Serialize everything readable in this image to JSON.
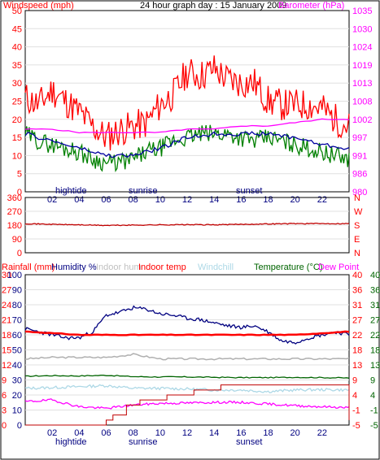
{
  "chart_data": [
    {
      "type": "line",
      "panel": "wind-baro",
      "title": "24 hour graph day : 15 January 2009",
      "left_label": "Windspeed (mph)",
      "right_label": "Barometer (hPa)",
      "colors": {
        "gust": "#ff0000",
        "average": "#008000",
        "direction_avg": "#0000a0",
        "barometer": "#ff00ff",
        "left_axis": "#ff0000",
        "right_axis": "#ff00ff"
      },
      "left_ticks": [
        "50",
        "45",
        "40",
        "35",
        "30",
        "25",
        "20",
        "15",
        "10",
        "5",
        "0"
      ],
      "right_ticks": [
        "1035",
        "1030",
        "1024",
        "1019",
        "1013",
        "1008",
        "1002",
        "997",
        "991",
        "986",
        "980"
      ],
      "ylim_left": [
        0,
        50
      ],
      "ylim_right": [
        980,
        1035
      ],
      "x_ticks": [
        "02",
        "04",
        "06",
        "08",
        "10",
        "12",
        "14",
        "16",
        "18",
        "20",
        "22",
        ""
      ],
      "events": [
        "hightide",
        "sunrise",
        "sunset"
      ],
      "series": [
        {
          "key": "gust",
          "hours": [
            0,
            1,
            2,
            3,
            4,
            5,
            6,
            7,
            8,
            9,
            10,
            11,
            12,
            13,
            14,
            15,
            16,
            17,
            18,
            19,
            20,
            21,
            22,
            23,
            24
          ],
          "values": [
            26,
            24,
            28,
            25,
            22,
            18,
            15,
            17,
            18,
            19,
            24,
            27,
            33,
            32,
            34,
            31,
            30,
            30,
            25,
            24,
            24,
            24,
            23,
            20,
            18
          ]
        },
        {
          "key": "average",
          "hours": [
            0,
            1,
            2,
            3,
            4,
            5,
            6,
            7,
            8,
            9,
            10,
            11,
            12,
            13,
            14,
            15,
            16,
            17,
            18,
            19,
            20,
            21,
            22,
            23,
            24
          ],
          "values": [
            16,
            14,
            13,
            12,
            11,
            9,
            8,
            8,
            9,
            11,
            12,
            14,
            15,
            16,
            16,
            16,
            15,
            14,
            15,
            14,
            13,
            12,
            11,
            10,
            9
          ]
        },
        {
          "key": "direction_avg",
          "hours": [
            0,
            2,
            4,
            6,
            8,
            10,
            12,
            14,
            16,
            18,
            20,
            22,
            24
          ],
          "values": [
            16,
            14,
            12,
            10,
            10,
            12,
            15,
            16,
            16,
            16,
            15,
            13,
            12
          ]
        },
        {
          "key": "barometer",
          "hours": [
            0,
            2,
            4,
            6,
            8,
            10,
            12,
            14,
            16,
            18,
            20,
            22,
            24
          ],
          "values": [
            999,
            999,
            998,
            998,
            998,
            998,
            999,
            999,
            1000,
            1000,
            1001,
            1002,
            1002
          ]
        }
      ]
    },
    {
      "type": "line",
      "panel": "wind-direction",
      "left_ticks": [
        "360",
        "270",
        "180",
        "90",
        "0"
      ],
      "right_ticks": [
        "N",
        "W",
        "S",
        "E",
        "N"
      ],
      "ylim": [
        0,
        360
      ],
      "colors": {
        "direction": "#c00000",
        "axis": "#ff0000"
      },
      "series": [
        {
          "key": "direction",
          "hours": [
            0,
            2,
            4,
            6,
            8,
            10,
            12,
            14,
            16,
            18,
            20,
            22,
            24
          ],
          "values": [
            190,
            185,
            182,
            178,
            180,
            182,
            183,
            182,
            185,
            188,
            190,
            190,
            190
          ]
        }
      ]
    },
    {
      "type": "line",
      "panel": "temp-humidity-rain",
      "legend": [
        {
          "label": "Rainfall (mm)",
          "color": "#ff0000"
        },
        {
          "label": "Humidity %",
          "color": "#000080"
        },
        {
          "label": "Indoor hum",
          "color": "#c0c0c0"
        },
        {
          "label": "Indoor temp",
          "color": "#ff0000"
        },
        {
          "label": "Windchill",
          "color": "#add8e6"
        },
        {
          "label": "Temperature (°C)",
          "color": "#006400"
        },
        {
          "label": "Dew Point",
          "color": "#ff00ff"
        }
      ],
      "rain_ticks": [
        "30",
        "27",
        "24",
        "21",
        "18",
        "15",
        "12",
        "9",
        "6",
        "3",
        "0"
      ],
      "humidity_ticks": [
        "100",
        "90",
        "80",
        "70",
        "60",
        "50",
        "40",
        "30",
        "20",
        "10",
        "0"
      ],
      "temp_ticks_a": [
        "40",
        "36",
        "31",
        "27",
        "22",
        "18",
        "13",
        "9",
        "4",
        "-1",
        "-5"
      ],
      "temp_ticks_b": [
        "40",
        "36",
        "31",
        "27",
        "22",
        "18",
        "13",
        "9",
        "4",
        "-1",
        "-5"
      ],
      "x_ticks": [
        "02",
        "04",
        "06",
        "08",
        "10",
        "12",
        "14",
        "16",
        "18",
        "20",
        "22",
        ""
      ],
      "events": [
        "hightide",
        "sunrise",
        "sunset"
      ],
      "series": [
        {
          "key": "humidity",
          "axis": "humidity",
          "hours": [
            0,
            1,
            2,
            3,
            4,
            5,
            6,
            7,
            8,
            9,
            10,
            11,
            12,
            13,
            14,
            15,
            16,
            17,
            18,
            19,
            20,
            21,
            22,
            23,
            24
          ],
          "values": [
            64,
            62,
            60,
            58,
            58,
            62,
            73,
            75,
            78,
            77,
            74,
            73,
            71,
            70,
            68,
            66,
            65,
            66,
            62,
            56,
            55,
            58,
            60,
            62,
            60
          ]
        },
        {
          "key": "indoor_temp",
          "axis": "temp",
          "hours": [
            0,
            4,
            8,
            12,
            16,
            20,
            24
          ],
          "values": [
            23,
            22,
            22,
            22,
            22,
            22,
            23
          ]
        },
        {
          "key": "indoor_hum",
          "axis": "humidity",
          "hours": [
            0,
            2,
            4,
            6,
            8,
            10,
            12,
            14,
            16,
            18,
            20,
            22,
            24
          ],
          "values": [
            44,
            45,
            45,
            45,
            47,
            44,
            44,
            44,
            44,
            44,
            44,
            44,
            44
          ]
        },
        {
          "key": "temperature",
          "axis": "temp",
          "hours": [
            0,
            2,
            4,
            6,
            8,
            10,
            12,
            14,
            16,
            18,
            20,
            22,
            24
          ],
          "values": [
            9.6,
            9.8,
            9.7,
            9.9,
            9.5,
            9.4,
            9.4,
            9.3,
            9.2,
            9.2,
            9.3,
            9.2,
            9.1
          ]
        },
        {
          "key": "windchill",
          "axis": "temp",
          "hours": [
            0,
            2,
            4,
            6,
            8,
            10,
            12,
            14,
            16,
            18,
            20,
            22,
            24
          ],
          "values": [
            6.0,
            6.2,
            6.5,
            6.8,
            6.0,
            6.0,
            5.8,
            5.5,
            5.5,
            5.0,
            5.5,
            5.6,
            5.5
          ]
        },
        {
          "key": "dew_point",
          "axis": "temp",
          "hours": [
            0,
            2,
            4,
            6,
            8,
            10,
            12,
            14,
            16,
            18,
            20,
            22,
            24
          ],
          "values": [
            2.0,
            2.5,
            0.5,
            0.0,
            1.0,
            1.5,
            1.6,
            1.8,
            1.8,
            1.3,
            0.8,
            0.5,
            0.2
          ]
        },
        {
          "key": "rainfall",
          "axis": "rain",
          "hours": [
            0,
            5.7,
            6.0,
            6.5,
            7.5,
            8.5,
            10.5,
            12.5,
            14.5,
            23.8,
            24
          ],
          "values": [
            0,
            0,
            1,
            2,
            4,
            5,
            6,
            7,
            8,
            8,
            1
          ]
        }
      ]
    }
  ]
}
